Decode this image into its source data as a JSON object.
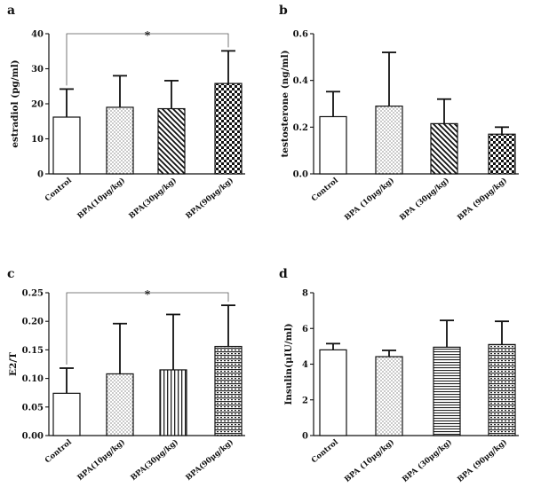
{
  "chart_data": [
    {
      "panel": "a",
      "type": "bar",
      "ylabel": "estradiol (pg/ml)",
      "ylim": [
        0,
        40
      ],
      "yticks": [
        "0",
        "10",
        "20",
        "30",
        "40"
      ],
      "categories": [
        "Control",
        "BPA(10μg/kg)",
        "BPA(30μg/kg)",
        "BPA(90μg/kg)"
      ],
      "values": [
        16.2,
        19.0,
        18.6,
        25.8
      ],
      "errors": [
        8.0,
        9.0,
        8.0,
        9.3
      ],
      "patterns": [
        "none",
        "dots",
        "diagonal",
        "checker"
      ],
      "significance": [
        {
          "from": 0,
          "to": 3,
          "label": "*"
        }
      ]
    },
    {
      "panel": "b",
      "type": "bar",
      "ylabel": "testosterone (ng/ml)",
      "ylim": [
        0,
        0.6
      ],
      "yticks": [
        "0.0",
        "0.2",
        "0.4",
        "0.6"
      ],
      "categories": [
        "Control",
        "BPA (10μg/kg)",
        "BPA (30μg/kg)",
        "BPA (90μg/kg)"
      ],
      "values": [
        0.245,
        0.29,
        0.215,
        0.17
      ],
      "errors": [
        0.107,
        0.23,
        0.105,
        0.03
      ],
      "patterns": [
        "none",
        "dots",
        "diagonal",
        "checker"
      ],
      "significance": []
    },
    {
      "panel": "c",
      "type": "bar",
      "ylabel": "E2/T",
      "ylim": [
        0,
        0.25
      ],
      "yticks": [
        "0.00",
        "0.05",
        "0.10",
        "0.15",
        "0.20",
        "0.25"
      ],
      "categories": [
        "Control",
        "BPA(10μg/kg)",
        "BPA(30μg/kg)",
        "BPA(90μg/kg)"
      ],
      "values": [
        0.074,
        0.108,
        0.115,
        0.156
      ],
      "errors": [
        0.044,
        0.088,
        0.097,
        0.072
      ],
      "patterns": [
        "none",
        "dots",
        "vertical",
        "hchecker"
      ],
      "significance": [
        {
          "from": 0,
          "to": 3,
          "label": "*"
        }
      ]
    },
    {
      "panel": "d",
      "type": "bar",
      "ylabel": "Insulin(μIU/ml)",
      "ylim": [
        0,
        8
      ],
      "yticks": [
        "0",
        "2",
        "4",
        "6",
        "8"
      ],
      "categories": [
        "Control",
        "BPA (10μg/kg)",
        "BPA (30μg/kg)",
        "BPA (90μg/kg)"
      ],
      "values": [
        4.8,
        4.42,
        4.95,
        5.1
      ],
      "errors": [
        0.35,
        0.35,
        1.5,
        1.3
      ],
      "patterns": [
        "none",
        "dots",
        "horizontal",
        "hchecker"
      ],
      "significance": []
    }
  ]
}
